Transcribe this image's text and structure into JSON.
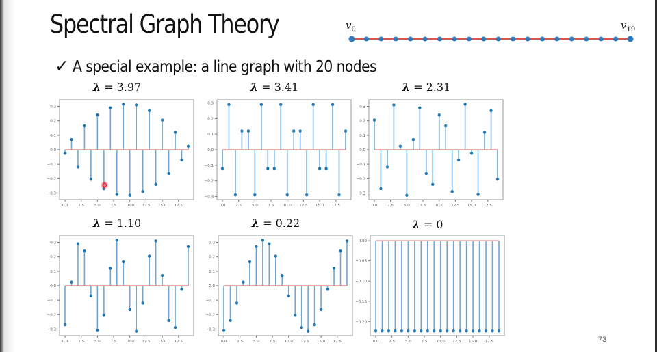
{
  "slide": {
    "title": "Spectral Graph Theory",
    "bullet_icon": "✓",
    "bullet_text": "A special example: a line graph with 20 nodes",
    "page_number": "73"
  },
  "line_graph": {
    "node_count": 20,
    "start_label": "v",
    "start_sub": "0",
    "end_label": "v",
    "end_sub": "19",
    "node_color": "#2e7bbf",
    "edge_color": "#d9534f"
  },
  "chart_data": [
    {
      "type": "stem",
      "title": "λ = 3.97",
      "lambda": "3.97",
      "x": [
        0,
        1,
        2,
        3,
        4,
        5,
        6,
        7,
        8,
        9,
        10,
        11,
        12,
        13,
        14,
        15,
        16,
        17,
        18,
        19
      ],
      "values": [
        -0.025,
        0.07,
        -0.12,
        0.165,
        -0.205,
        0.24,
        -0.27,
        0.29,
        -0.31,
        0.315,
        -0.315,
        0.31,
        -0.29,
        0.27,
        -0.24,
        0.205,
        -0.165,
        0.12,
        -0.07,
        0.025
      ],
      "xticks": [
        "0.0",
        "2.5",
        "5.0",
        "7.5",
        "10.0",
        "12.5",
        "15.0",
        "17.5"
      ],
      "yticks": [
        "0.3",
        "0.2",
        "0.1",
        "0.0",
        "-0.1",
        "-0.2",
        "-0.3"
      ],
      "ylim": [
        -0.345,
        0.345
      ],
      "baseline_color": "#d9534f",
      "stem_color": "#1f77b4",
      "cursor_marker": {
        "x": 6.1,
        "y": -0.245,
        "color": "#e8202a"
      }
    },
    {
      "type": "stem",
      "title": "λ = 3.41",
      "lambda": "3.41",
      "x": [
        0,
        1,
        2,
        3,
        4,
        5,
        6,
        7,
        8,
        9,
        10,
        11,
        12,
        13,
        14,
        15,
        16,
        17,
        18,
        19
      ],
      "values": [
        -0.12,
        0.29,
        -0.29,
        0.12,
        0.12,
        -0.29,
        0.29,
        -0.12,
        -0.12,
        0.29,
        -0.29,
        0.12,
        0.12,
        -0.29,
        0.29,
        -0.12,
        -0.12,
        0.29,
        -0.29,
        0.12
      ],
      "xticks": [
        "0.0",
        "2.5",
        "5.0",
        "7.5",
        "10.0",
        "12.5",
        "15.0",
        "17.5"
      ],
      "yticks": [
        "0.3",
        "0.2",
        "0.1",
        "0.0",
        "-0.1",
        "-0.2",
        "-0.3"
      ],
      "ylim": [
        -0.32,
        0.32
      ]
    },
    {
      "type": "stem",
      "title": "λ = 2.31",
      "lambda": "2.31",
      "x": [
        0,
        1,
        2,
        3,
        4,
        5,
        6,
        7,
        8,
        9,
        10,
        11,
        12,
        13,
        14,
        15,
        16,
        17,
        18,
        19
      ],
      "values": [
        0.205,
        -0.27,
        -0.12,
        0.31,
        0.025,
        -0.315,
        0.07,
        0.29,
        -0.165,
        -0.24,
        0.24,
        0.165,
        -0.29,
        -0.07,
        0.315,
        -0.025,
        -0.31,
        0.12,
        0.27,
        -0.205
      ],
      "xticks": [
        "0.0",
        "2.5",
        "5.0",
        "7.5",
        "10.0",
        "12.5",
        "15.0",
        "17.5"
      ],
      "yticks": [
        "0.3",
        "0.2",
        "0.1",
        "0.0",
        "-0.1",
        "-0.2",
        "-0.3"
      ],
      "ylim": [
        -0.345,
        0.345
      ]
    },
    {
      "type": "stem",
      "title": "λ = 1.10",
      "lambda": "1.10",
      "x": [
        0,
        1,
        2,
        3,
        4,
        5,
        6,
        7,
        8,
        9,
        10,
        11,
        12,
        13,
        14,
        15,
        16,
        17,
        18,
        19
      ],
      "values": [
        -0.27,
        0.025,
        0.29,
        0.24,
        -0.07,
        -0.31,
        -0.205,
        0.12,
        0.315,
        0.165,
        -0.165,
        -0.315,
        -0.12,
        0.205,
        0.31,
        0.07,
        -0.24,
        -0.29,
        -0.025,
        0.27
      ],
      "xticks": [
        "0.0",
        "2.5",
        "5.0",
        "7.5",
        "10.0",
        "12.5",
        "15.0",
        "17.5"
      ],
      "yticks": [
        "0.3",
        "0.2",
        "0.1",
        "0.0",
        "-0.1",
        "-0.2",
        "-0.3"
      ],
      "ylim": [
        -0.345,
        0.345
      ]
    },
    {
      "type": "stem",
      "title": "λ = 0.22",
      "lambda": "0.22",
      "x": [
        0,
        1,
        2,
        3,
        4,
        5,
        6,
        7,
        8,
        9,
        10,
        11,
        12,
        13,
        14,
        15,
        16,
        17,
        18,
        19
      ],
      "values": [
        -0.31,
        -0.24,
        -0.12,
        0.025,
        0.165,
        0.27,
        0.315,
        0.29,
        0.205,
        0.07,
        -0.07,
        -0.205,
        -0.29,
        -0.315,
        -0.27,
        -0.165,
        -0.025,
        0.12,
        0.24,
        0.31
      ],
      "xticks": [
        "0.0",
        "2.5",
        "5.0",
        "7.5",
        "10.0",
        "12.5",
        "15.0",
        "17.5"
      ],
      "yticks": [
        "0.3",
        "0.2",
        "0.1",
        "0.0",
        "-0.1",
        "-0.2",
        "-0.3"
      ],
      "ylim": [
        -0.345,
        0.345
      ]
    },
    {
      "type": "stem",
      "title": "λ = 0",
      "lambda": "0",
      "x": [
        0,
        1,
        2,
        3,
        4,
        5,
        6,
        7,
        8,
        9,
        10,
        11,
        12,
        13,
        14,
        15,
        16,
        17,
        18,
        19
      ],
      "values": [
        -0.2236,
        -0.2236,
        -0.2236,
        -0.2236,
        -0.2236,
        -0.2236,
        -0.2236,
        -0.2236,
        -0.2236,
        -0.2236,
        -0.2236,
        -0.2236,
        -0.2236,
        -0.2236,
        -0.2236,
        -0.2236,
        -0.2236,
        -0.2236,
        -0.2236,
        -0.2236
      ],
      "xticks": [
        "0.0",
        "2.5",
        "5.0",
        "7.5",
        "10.0",
        "12.5",
        "15.0",
        "17.5"
      ],
      "yticks": [
        "0.00",
        "-0.05",
        "-0.10",
        "-0.15",
        "-0.20"
      ],
      "ylim": [
        -0.235,
        0.012
      ]
    }
  ]
}
